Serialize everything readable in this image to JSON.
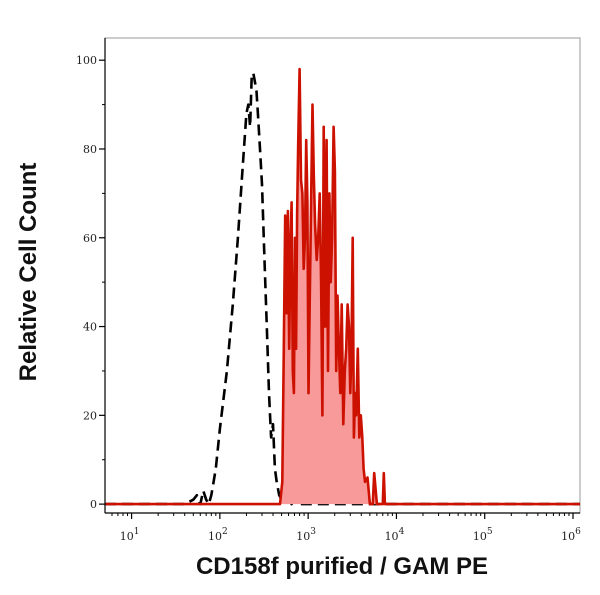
{
  "chart_data": {
    "type": "area",
    "title": "",
    "xlabel": "CD158f purified / GAM PE",
    "ylabel": "Relative Cell Count",
    "x_scale": "log",
    "xlim": [
      5,
      1200000
    ],
    "ylim": [
      -2,
      105
    ],
    "grid": false,
    "legend": "none",
    "x_ticks": [
      {
        "value": 10,
        "base": "10",
        "exp": "1"
      },
      {
        "value": 100,
        "base": "10",
        "exp": "2"
      },
      {
        "value": 1000,
        "base": "10",
        "exp": "3"
      },
      {
        "value": 10000,
        "base": "10",
        "exp": "4"
      },
      {
        "value": 100000,
        "base": "10",
        "exp": "5"
      },
      {
        "value": 1000000,
        "base": "10",
        "exp": "6"
      }
    ],
    "y_ticks": [
      0,
      20,
      40,
      60,
      80,
      100
    ],
    "colors": {
      "stained_line": "#cc1100",
      "stained_fill": "#f89a9a",
      "control_line": "#000000",
      "axis": "#000000"
    },
    "series": [
      {
        "style": "dashed",
        "x": [
          5,
          40,
          50,
          55,
          60,
          65,
          70,
          75,
          80,
          85,
          90,
          100,
          120,
          140,
          160,
          180,
          200,
          210,
          220,
          230,
          240,
          250,
          260,
          270,
          285,
          300,
          320,
          340,
          360,
          380,
          400,
          420,
          440,
          470,
          500,
          530,
          560,
          600,
          650,
          700,
          750,
          800,
          1000,
          1200000
        ],
        "y": [
          0,
          0,
          1,
          2,
          0,
          3,
          1,
          0,
          2,
          5,
          8,
          17,
          30,
          45,
          60,
          75,
          88,
          90,
          85,
          97,
          97,
          95,
          93,
          88,
          80,
          72,
          55,
          40,
          25,
          15,
          18,
          8,
          5,
          2,
          1,
          3,
          2,
          1,
          0,
          1,
          0,
          0,
          0,
          0
        ]
      },
      {
        "style": "filled",
        "x": [
          5,
          480,
          510,
          530,
          550,
          570,
          590,
          610,
          630,
          650,
          670,
          690,
          710,
          730,
          750,
          770,
          800,
          830,
          860,
          890,
          920,
          950,
          980,
          1010,
          1040,
          1080,
          1120,
          1160,
          1200,
          1250,
          1300,
          1350,
          1400,
          1450,
          1500,
          1560,
          1620,
          1680,
          1740,
          1800,
          1870,
          1940,
          2010,
          2080,
          2150,
          2230,
          2310,
          2400,
          2500,
          2600,
          2700,
          2800,
          2900,
          3000,
          3100,
          3200,
          3300,
          3400,
          3500,
          3650,
          3800,
          3950,
          4100,
          4250,
          4400,
          4700,
          5000,
          5200,
          5400,
          5600,
          6000,
          6500,
          7000,
          7200,
          7400,
          7600,
          8000,
          1200000
        ],
        "y": [
          0,
          0,
          5,
          35,
          65,
          43,
          66,
          35,
          58,
          68,
          30,
          25,
          60,
          35,
          65,
          80,
          98,
          73,
          70,
          53,
          60,
          82,
          68,
          25,
          45,
          68,
          90,
          74,
          63,
          55,
          60,
          70,
          50,
          20,
          85,
          40,
          82,
          30,
          70,
          50,
          60,
          85,
          75,
          30,
          47,
          35,
          25,
          45,
          18,
          30,
          35,
          45,
          40,
          25,
          35,
          60,
          15,
          25,
          20,
          35,
          15,
          20,
          15,
          8,
          5,
          6,
          0,
          0,
          0,
          7,
          0,
          0,
          0,
          7,
          0,
          0,
          0,
          0
        ]
      }
    ]
  }
}
